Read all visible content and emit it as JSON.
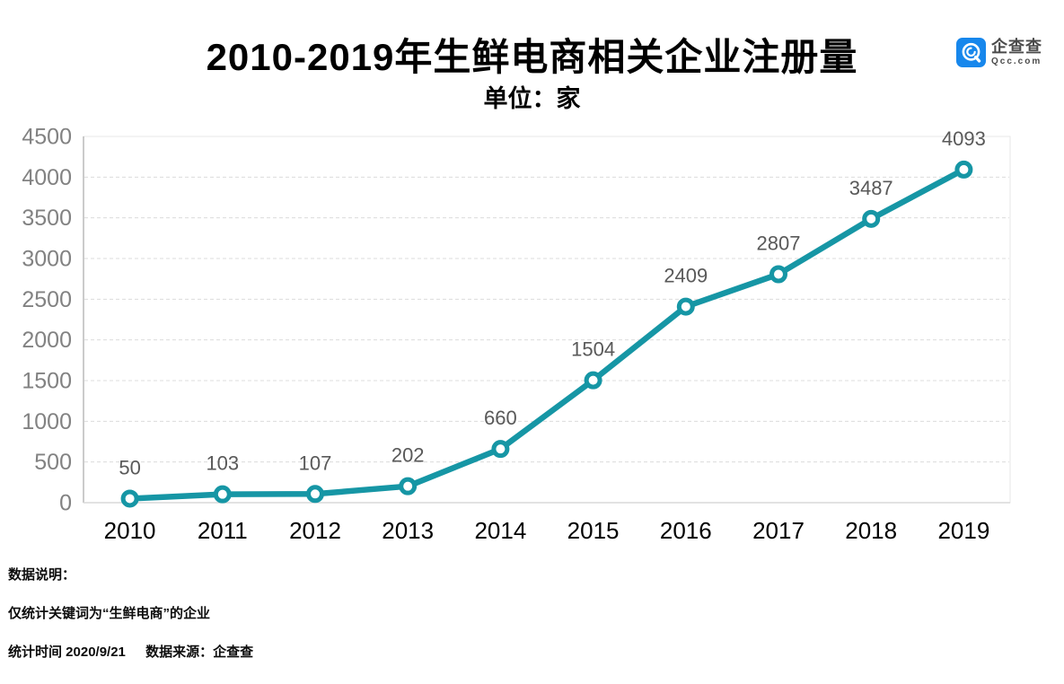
{
  "header": {
    "title": "2010-2019年生鲜电商相关企业注册量",
    "unit_label": "单位：家"
  },
  "logo": {
    "name": "企查查",
    "domain": "Qcc.com",
    "icon": "qcc-magnifier-icon",
    "icon_color": "#1787ec"
  },
  "chart_data": {
    "type": "line",
    "title": "2010-2019年生鲜电商相关企业注册量",
    "unit": "单位：家",
    "x": [
      "2010",
      "2011",
      "2012",
      "2013",
      "2014",
      "2015",
      "2016",
      "2017",
      "2018",
      "2019"
    ],
    "series": [
      {
        "name": "生鲜电商相关企业注册量",
        "values": [
          50,
          103,
          107,
          202,
          660,
          1504,
          2409,
          2807,
          3487,
          4093
        ]
      }
    ],
    "ylim": [
      0,
      4500
    ],
    "ytick_step": 500,
    "grid": "horizontal-dashed",
    "legend": "none",
    "xlabel": "",
    "ylabel": "",
    "colors": {
      "line": "#1696a5",
      "marker_fill": "#ffffff",
      "grid": "#dcdcdc",
      "plot_border": "#e7e7e7",
      "y_axis": "#b5b5b5",
      "bottom_axis": "#d9d9d9",
      "y_tick_label": "#828282",
      "data_label": "#595959",
      "x_tick_label": "#000000"
    }
  },
  "footer": {
    "note_title": "数据说明：",
    "note_body": "仅统计关键词为“生鲜电商”的企业",
    "stat_time": "统计时间 2020/9/21",
    "data_source": "数据来源：企查查"
  }
}
